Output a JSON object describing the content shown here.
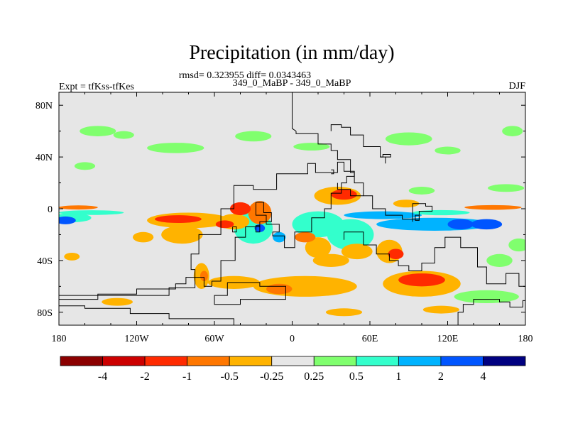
{
  "chart_data": {
    "type": "heatmap",
    "title": "Precipitation (in mm/day)",
    "stats": "rmsd= 0.323955 diff= 0.0343463",
    "left_label": "Expt = tfKss-tfKes",
    "center_label": "349_0_MaBP - 349_0_MaBP",
    "right_label": "DJF",
    "x_range": [
      -180,
      180
    ],
    "y_range": [
      -90,
      90
    ],
    "x_ticks": [
      {
        "value": -180,
        "label": "180"
      },
      {
        "value": -120,
        "label": "120W"
      },
      {
        "value": -60,
        "label": "60W"
      },
      {
        "value": 0,
        "label": "0"
      },
      {
        "value": 60,
        "label": "60E"
      },
      {
        "value": 120,
        "label": "120E"
      },
      {
        "value": 180,
        "label": "180"
      }
    ],
    "y_ticks": [
      {
        "value": 80,
        "label": "80N"
      },
      {
        "value": 40,
        "label": "40N"
      },
      {
        "value": 0,
        "label": "0"
      },
      {
        "value": -40,
        "label": "40S"
      },
      {
        "value": -80,
        "label": "80S"
      }
    ],
    "colorbar": {
      "colors": [
        "#8b0000",
        "#cc0000",
        "#ff2a00",
        "#ff7700",
        "#ffb300",
        "#e6e6e6",
        "#80ff6e",
        "#33ffcc",
        "#00b3ff",
        "#0055ff",
        "#000080"
      ],
      "labels": [
        "-4",
        "-2",
        "-1",
        "-0.5",
        "-0.25",
        "0.25",
        "0.5",
        "1",
        "2",
        "4"
      ]
    },
    "blobs": [
      {
        "lon": -150,
        "lat": 60,
        "rl": 14,
        "rt": 4,
        "v": 0.3
      },
      {
        "lon": -130,
        "lat": 57,
        "rl": 8,
        "rt": 3,
        "v": 0.3
      },
      {
        "lon": -90,
        "lat": 47,
        "rl": 22,
        "rt": 4,
        "v": 0.35
      },
      {
        "lon": -30,
        "lat": 56,
        "rl": 14,
        "rt": 4,
        "v": 0.3
      },
      {
        "lon": 15,
        "lat": 48,
        "rl": 14,
        "rt": 3,
        "v": 0.3
      },
      {
        "lon": 90,
        "lat": 54,
        "rl": 18,
        "rt": 5,
        "v": 0.35
      },
      {
        "lon": 120,
        "lat": 45,
        "rl": 10,
        "rt": 3,
        "v": 0.3
      },
      {
        "lon": 170,
        "lat": 60,
        "rl": 8,
        "rt": 4,
        "v": 0.3
      },
      {
        "lon": -160,
        "lat": 33,
        "rl": 8,
        "rt": 3,
        "v": 0.3
      },
      {
        "lon": 165,
        "lat": 16,
        "rl": 14,
        "rt": 3,
        "v": 0.3
      },
      {
        "lon": 100,
        "lat": 14,
        "rl": 10,
        "rt": 3,
        "v": 0.3
      },
      {
        "lon": -165,
        "lat": 1,
        "rl": 15,
        "rt": 1.6,
        "v": -0.6
      },
      {
        "lon": 155,
        "lat": 1,
        "rl": 22,
        "rt": 1.8,
        "v": -0.6
      },
      {
        "lon": -155,
        "lat": -3,
        "rl": 25,
        "rt": 1.8,
        "v": 0.8
      },
      {
        "lon": 115,
        "lat": -3,
        "rl": 22,
        "rt": 2,
        "v": 0.8
      },
      {
        "lon": -170,
        "lat": -7,
        "rl": 15,
        "rt": 3.5,
        "v": 0.9
      },
      {
        "lon": 70,
        "lat": -5,
        "rl": 30,
        "rt": 3,
        "v": 1.3
      },
      {
        "lon": 110,
        "lat": -12,
        "rl": 45,
        "rt": 5,
        "v": 1.2
      },
      {
        "lon": 150,
        "lat": -12,
        "rl": 12,
        "rt": 4,
        "v": 2.2
      },
      {
        "lon": 130,
        "lat": -12,
        "rl": 10,
        "rt": 4,
        "v": 2.2
      },
      {
        "lon": -175,
        "lat": -9,
        "rl": 8,
        "rt": 3,
        "v": 2.2
      },
      {
        "lon": 20,
        "lat": -12,
        "rl": 20,
        "rt": 10,
        "v": 0.6
      },
      {
        "lon": 45,
        "lat": -20,
        "rl": 18,
        "rt": 12,
        "v": 0.6
      },
      {
        "lon": -30,
        "lat": -15,
        "rl": 15,
        "rt": 12,
        "v": 0.6
      },
      {
        "lon": -10,
        "lat": -22,
        "rl": 5,
        "rt": 4,
        "v": 1.2
      },
      {
        "lon": -25,
        "lat": -15,
        "rl": 4,
        "rt": 3,
        "v": 2.2
      },
      {
        "lon": -80,
        "lat": -9,
        "rl": 32,
        "rt": 6,
        "v": -0.4
      },
      {
        "lon": -88,
        "lat": -8,
        "rl": 18,
        "rt": 3,
        "v": -1.5
      },
      {
        "lon": -85,
        "lat": -20,
        "rl": 16,
        "rt": 7,
        "v": -0.4
      },
      {
        "lon": -115,
        "lat": -22,
        "rl": 8,
        "rt": 4,
        "v": -0.35
      },
      {
        "lon": -45,
        "lat": -10,
        "rl": 12,
        "rt": 6,
        "v": -0.4
      },
      {
        "lon": -52,
        "lat": -12,
        "rl": 7,
        "rt": 3,
        "v": -1.2
      },
      {
        "lon": -40,
        "lat": 0,
        "rl": 8,
        "rt": 5,
        "v": -1.2
      },
      {
        "lon": -25,
        "lat": -3,
        "rl": 9,
        "rt": 9,
        "v": -0.6
      },
      {
        "lon": 35,
        "lat": 10,
        "rl": 18,
        "rt": 7,
        "v": -0.4
      },
      {
        "lon": 40,
        "lat": 11,
        "rl": 10,
        "rt": 4,
        "v": -1.5
      },
      {
        "lon": 10,
        "lat": -22,
        "rl": 8,
        "rt": 4,
        "v": -0.6
      },
      {
        "lon": 20,
        "lat": -30,
        "rl": 10,
        "rt": 8,
        "v": -0.4
      },
      {
        "lon": 50,
        "lat": -33,
        "rl": 12,
        "rt": 6,
        "v": -0.4
      },
      {
        "lon": 75,
        "lat": -33,
        "rl": 10,
        "rt": 9,
        "v": -0.5
      },
      {
        "lon": 80,
        "lat": -35,
        "rl": 6,
        "rt": 4,
        "v": -1.2
      },
      {
        "lon": 30,
        "lat": -40,
        "rl": 14,
        "rt": 5,
        "v": -0.4
      },
      {
        "lon": 10,
        "lat": -60,
        "rl": 40,
        "rt": 8,
        "v": -0.4
      },
      {
        "lon": -10,
        "lat": -62,
        "rl": 10,
        "rt": 4,
        "v": -0.6
      },
      {
        "lon": -45,
        "lat": -57,
        "rl": 20,
        "rt": 5,
        "v": -0.4
      },
      {
        "lon": -70,
        "lat": -52,
        "rl": 6,
        "rt": 10,
        "v": -0.4
      },
      {
        "lon": -68,
        "lat": -52,
        "rl": 3,
        "rt": 4,
        "v": -0.7
      },
      {
        "lon": -170,
        "lat": -37,
        "rl": 6,
        "rt": 3,
        "v": -0.35
      },
      {
        "lon": -135,
        "lat": -72,
        "rl": 12,
        "rt": 3,
        "v": -0.35
      },
      {
        "lon": 100,
        "lat": -58,
        "rl": 30,
        "rt": 10,
        "v": -0.5
      },
      {
        "lon": 100,
        "lat": -55,
        "rl": 18,
        "rt": 5,
        "v": -1.3
      },
      {
        "lon": 40,
        "lat": -80,
        "rl": 14,
        "rt": 3,
        "v": -0.35
      },
      {
        "lon": 115,
        "lat": -78,
        "rl": 14,
        "rt": 3,
        "v": -0.35
      },
      {
        "lon": 150,
        "lat": -68,
        "rl": 25,
        "rt": 5,
        "v": 0.35
      },
      {
        "lon": 175,
        "lat": -28,
        "rl": 8,
        "rt": 5,
        "v": 0.35
      },
      {
        "lon": 160,
        "lat": -40,
        "rl": 10,
        "rt": 5,
        "v": 0.35
      },
      {
        "lon": 88,
        "lat": 4,
        "rl": 10,
        "rt": 3,
        "v": -0.35
      }
    ],
    "coastlines": [
      [
        [
          -45,
          -90
        ],
        [
          -45,
          -85
        ],
        [
          -95,
          -85
        ],
        [
          -95,
          -81
        ],
        [
          -125,
          -81
        ],
        [
          -125,
          -77
        ],
        [
          -160,
          -77
        ],
        [
          -160,
          -75
        ],
        [
          -180,
          -75
        ]
      ],
      [
        [
          180,
          -71
        ],
        [
          178,
          -71
        ],
        [
          178,
          -76
        ],
        [
          168,
          -76
        ],
        [
          168,
          -72
        ],
        [
          160,
          -72
        ],
        [
          160,
          -70
        ],
        [
          140,
          -70
        ],
        [
          140,
          -74
        ],
        [
          132,
          -74
        ],
        [
          132,
          -80
        ],
        [
          128,
          -80
        ],
        [
          128,
          -90
        ]
      ],
      [
        [
          -180,
          -67
        ],
        [
          -95,
          -67
        ],
        [
          -95,
          -61
        ],
        [
          -75,
          -61
        ],
        [
          -75,
          -47
        ],
        [
          -78,
          -47
        ],
        [
          -78,
          -35
        ],
        [
          -72,
          -35
        ],
        [
          -72,
          -20
        ],
        [
          -55,
          -20
        ],
        [
          -55,
          0
        ],
        [
          -45,
          0
        ],
        [
          -45,
          18
        ],
        [
          -30,
          18
        ],
        [
          -30,
          15
        ],
        [
          -12,
          15
        ],
        [
          -12,
          27
        ],
        [
          12,
          27
        ],
        [
          12,
          35
        ],
        [
          18,
          35
        ],
        [
          18,
          28
        ],
        [
          35,
          28
        ],
        [
          35,
          36
        ],
        [
          40,
          36
        ],
        [
          40,
          29
        ],
        [
          48,
          29
        ],
        [
          48,
          25
        ],
        [
          42,
          25
        ],
        [
          42,
          20
        ],
        [
          38,
          20
        ],
        [
          38,
          12
        ],
        [
          30,
          12
        ],
        [
          30,
          0
        ],
        [
          25,
          0
        ],
        [
          25,
          -7
        ],
        [
          15,
          -7
        ],
        [
          15,
          -18
        ],
        [
          2,
          -18
        ],
        [
          2,
          -30
        ],
        [
          -6,
          -30
        ],
        [
          -6,
          -21
        ],
        [
          -15,
          -21
        ],
        [
          -15,
          -18
        ],
        [
          -10,
          -18
        ],
        [
          -10,
          -12
        ],
        [
          -20,
          -12
        ],
        [
          -20,
          -5
        ],
        [
          -28,
          -5
        ],
        [
          -28,
          5
        ],
        [
          -22,
          5
        ],
        [
          -22,
          -3
        ],
        [
          -16,
          -3
        ],
        [
          -16,
          -10
        ],
        [
          -25,
          -10
        ],
        [
          -25,
          -14
        ],
        [
          -36,
          -14
        ],
        [
          -36,
          -22
        ],
        [
          -44,
          -22
        ],
        [
          -44,
          -40
        ],
        [
          -55,
          -40
        ],
        [
          -55,
          -56
        ],
        [
          -62,
          -56
        ],
        [
          -62,
          -60
        ],
        [
          -68,
          -60
        ],
        [
          -68,
          -53
        ],
        [
          -82,
          -53
        ],
        [
          -82,
          -58
        ],
        [
          -90,
          -58
        ],
        [
          -90,
          -62
        ],
        [
          -120,
          -62
        ],
        [
          -120,
          -66
        ],
        [
          -150,
          -66
        ],
        [
          -150,
          -70
        ],
        [
          -180,
          -70
        ]
      ],
      [
        [
          -50,
          -57
        ],
        [
          -25,
          -57
        ],
        [
          -25,
          -60
        ],
        [
          -5,
          -60
        ],
        [
          -5,
          -70
        ],
        [
          -40,
          -70
        ],
        [
          -40,
          -74
        ],
        [
          -60,
          -74
        ],
        [
          -60,
          -67
        ],
        [
          -50,
          -67
        ],
        [
          -50,
          -57
        ]
      ],
      [
        [
          40,
          -24
        ],
        [
          40,
          -18
        ],
        [
          55,
          -18
        ],
        [
          55,
          -28
        ],
        [
          65,
          -28
        ],
        [
          65,
          -35
        ],
        [
          75,
          -35
        ],
        [
          75,
          -40
        ],
        [
          82,
          -40
        ],
        [
          82,
          -44
        ],
        [
          90,
          -44
        ],
        [
          90,
          -48
        ],
        [
          100,
          -48
        ],
        [
          100,
          -42
        ],
        [
          110,
          -42
        ],
        [
          110,
          -30
        ],
        [
          118,
          -30
        ],
        [
          118,
          -22
        ],
        [
          130,
          -22
        ],
        [
          130,
          -30
        ],
        [
          143,
          -30
        ],
        [
          143,
          -45
        ],
        [
          150,
          -45
        ],
        [
          150,
          -58
        ],
        [
          165,
          -58
        ],
        [
          165,
          -50
        ],
        [
          175,
          -50
        ],
        [
          175,
          -60
        ],
        [
          180,
          -60
        ]
      ],
      [
        [
          3,
          60
        ],
        [
          3,
          58
        ],
        [
          20,
          58
        ],
        [
          20,
          50
        ],
        [
          30,
          50
        ],
        [
          30,
          45
        ],
        [
          35,
          45
        ],
        [
          35,
          38
        ],
        [
          45,
          38
        ],
        [
          45,
          28
        ],
        [
          48,
          28
        ],
        [
          48,
          20
        ],
        [
          55,
          20
        ],
        [
          55,
          10
        ],
        [
          62,
          10
        ],
        [
          62,
          0
        ],
        [
          72,
          0
        ],
        [
          72,
          -5
        ],
        [
          85,
          -5
        ],
        [
          85,
          -8
        ],
        [
          98,
          -8
        ],
        [
          98,
          -2
        ],
        [
          108,
          -2
        ],
        [
          108,
          2
        ],
        [
          103,
          2
        ],
        [
          103,
          4
        ],
        [
          93,
          4
        ],
        [
          93,
          -10
        ]
      ],
      [
        [
          3,
          60
        ],
        [
          0,
          62
        ],
        [
          0,
          90
        ]
      ],
      [
        [
          30,
          60
        ],
        [
          30,
          65
        ],
        [
          38,
          65
        ],
        [
          38,
          63
        ],
        [
          45,
          63
        ],
        [
          45,
          57
        ],
        [
          55,
          57
        ],
        [
          55,
          48
        ],
        [
          68,
          48
        ],
        [
          68,
          40
        ],
        [
          72,
          40
        ],
        [
          72,
          35
        ]
      ],
      [
        [
          -25,
          -13
        ],
        [
          -25,
          -18
        ],
        [
          -28,
          -18
        ],
        [
          -28,
          -13
        ],
        [
          -25,
          -13
        ]
      ],
      [
        [
          -46,
          -14
        ],
        [
          -46,
          -18
        ],
        [
          -43,
          -18
        ],
        [
          -43,
          -14
        ],
        [
          -46,
          -14
        ]
      ],
      [
        [
          35,
          20
        ],
        [
          35,
          15
        ],
        [
          45,
          15
        ],
        [
          45,
          10
        ],
        [
          55,
          10
        ]
      ],
      [
        [
          95,
          -5
        ],
        [
          98,
          -5
        ],
        [
          98,
          -9
        ],
        [
          95,
          -9
        ],
        [
          95,
          -5
        ]
      ],
      [
        [
          68,
          40
        ],
        [
          70,
          40
        ],
        [
          70,
          42
        ],
        [
          76,
          42
        ],
        [
          76,
          40
        ],
        [
          72,
          40
        ]
      ],
      [
        [
          30,
          30
        ],
        [
          32,
          30
        ],
        [
          32,
          27
        ],
        [
          30,
          27
        ]
      ]
    ]
  }
}
